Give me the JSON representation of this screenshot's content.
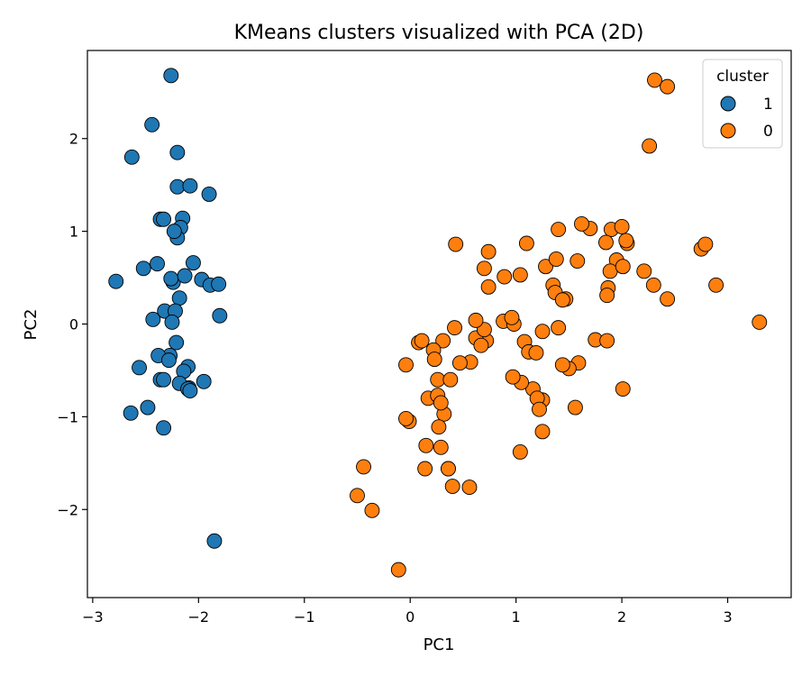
{
  "chart_data": {
    "type": "scatter",
    "title": "KMeans clusters visualized with PCA (2D)",
    "xlabel": "PC1",
    "ylabel": "PC2",
    "xlim": [
      -3.05,
      3.6
    ],
    "ylim": [
      -2.95,
      2.95
    ],
    "xticks": [
      -3,
      -2,
      -1,
      0,
      1,
      2,
      3
    ],
    "yticks": [
      -2,
      -1,
      0,
      1,
      2
    ],
    "xtick_labels": [
      "−3",
      "−2",
      "−1",
      "0",
      "1",
      "2",
      "3"
    ],
    "ytick_labels": [
      "−2",
      "−1",
      "0",
      "1",
      "2"
    ],
    "grid": false,
    "legend": {
      "title": "cluster",
      "position": "top-right"
    },
    "series": [
      {
        "name": "1",
        "color": "#1f77b4",
        "x": [
          -2.26,
          -2.44,
          -2.2,
          -2.63,
          -2.2,
          -2.08,
          -1.9,
          -2.36,
          -2.15,
          -2.33,
          -2.17,
          -2.2,
          -2.23,
          -2.05,
          -2.78,
          -2.52,
          -2.39,
          -2.24,
          -2.26,
          -2.13,
          -1.97,
          -1.89,
          -1.81,
          -2.18,
          -2.32,
          -2.43,
          -2.22,
          -2.25,
          -1.8,
          -2.21,
          -2.27,
          -2.38,
          -2.1,
          -2.14,
          -2.56,
          -2.28,
          -2.36,
          -2.09,
          -2.33,
          -2.18,
          -2.1,
          -2.48,
          -1.95,
          -2.08,
          -2.64,
          -2.33,
          -1.85
        ],
        "y": [
          2.68,
          2.15,
          1.85,
          1.8,
          1.48,
          1.49,
          1.4,
          1.13,
          1.14,
          1.13,
          1.04,
          0.93,
          1.0,
          0.66,
          0.46,
          0.6,
          0.65,
          0.45,
          0.49,
          0.52,
          0.48,
          0.42,
          0.43,
          0.28,
          0.14,
          0.05,
          0.14,
          0.02,
          0.09,
          -0.2,
          -0.34,
          -0.34,
          -0.46,
          -0.51,
          -0.47,
          -0.39,
          -0.6,
          -0.69,
          -0.6,
          -0.64,
          -0.7,
          -0.9,
          -0.62,
          -0.72,
          -0.96,
          -1.12,
          -2.34
        ]
      },
      {
        "name": "0",
        "color": "#ff7f0e",
        "x": [
          2.31,
          2.43,
          2.26,
          0.43,
          0.74,
          1.1,
          0.7,
          0.74,
          0.89,
          1.04,
          1.28,
          1.38,
          1.58,
          1.7,
          1.9,
          2.0,
          1.95,
          2.05,
          2.04,
          1.85,
          1.62,
          1.4,
          1.25,
          1.35,
          1.89,
          1.87,
          1.86,
          2.01,
          2.21,
          2.3,
          2.75,
          2.79,
          2.43,
          2.89,
          3.3,
          0.72,
          0.88,
          0.98,
          0.96,
          0.62,
          0.7,
          0.67,
          0.57,
          0.42,
          0.31,
          0.08,
          0.11,
          0.22,
          0.23,
          0.26,
          0.47,
          0.38,
          0.62,
          1.47,
          1.59,
          1.75,
          1.86,
          1.37,
          1.44,
          1.08,
          1.12,
          1.19,
          1.25,
          1.16,
          1.05,
          0.97,
          1.2,
          1.22,
          1.25,
          1.04,
          1.5,
          1.4,
          1.44,
          1.56,
          2.01,
          -0.04,
          0.17,
          0.26,
          0.32,
          0.29,
          0.15,
          0.36,
          0.27,
          -0.01,
          -0.04,
          0.14,
          0.29,
          0.36,
          0.4,
          0.56,
          -0.44,
          -0.5,
          -0.36,
          -0.11
        ],
        "y": [
          2.63,
          2.56,
          1.92,
          0.86,
          0.78,
          0.87,
          0.6,
          0.4,
          0.51,
          0.53,
          0.62,
          0.7,
          0.68,
          1.03,
          1.02,
          1.05,
          0.69,
          0.87,
          0.9,
          0.88,
          1.08,
          1.02,
          -0.08,
          0.42,
          0.57,
          0.39,
          0.31,
          0.62,
          0.57,
          0.42,
          0.81,
          0.86,
          0.27,
          0.42,
          0.02,
          -0.18,
          0.03,
          0.0,
          0.07,
          -0.15,
          -0.06,
          -0.23,
          -0.41,
          -0.04,
          -0.18,
          -0.2,
          -0.18,
          -0.28,
          -0.38,
          -0.6,
          -0.42,
          -0.6,
          0.04,
          0.27,
          -0.42,
          -0.17,
          -0.18,
          0.34,
          0.26,
          -0.19,
          -0.3,
          -0.31,
          -0.82,
          -0.7,
          -0.63,
          -0.57,
          -0.8,
          -0.92,
          -1.16,
          -1.38,
          -0.48,
          -0.04,
          -0.44,
          -0.9,
          -0.7,
          -0.44,
          -0.8,
          -0.77,
          -0.97,
          -0.85,
          -1.31,
          -1.56,
          -1.11,
          -1.05,
          -1.02,
          -1.56,
          -1.33,
          -1.56,
          -1.75,
          -1.76,
          -1.54,
          -1.85,
          -2.01,
          -2.65
        ]
      }
    ]
  }
}
